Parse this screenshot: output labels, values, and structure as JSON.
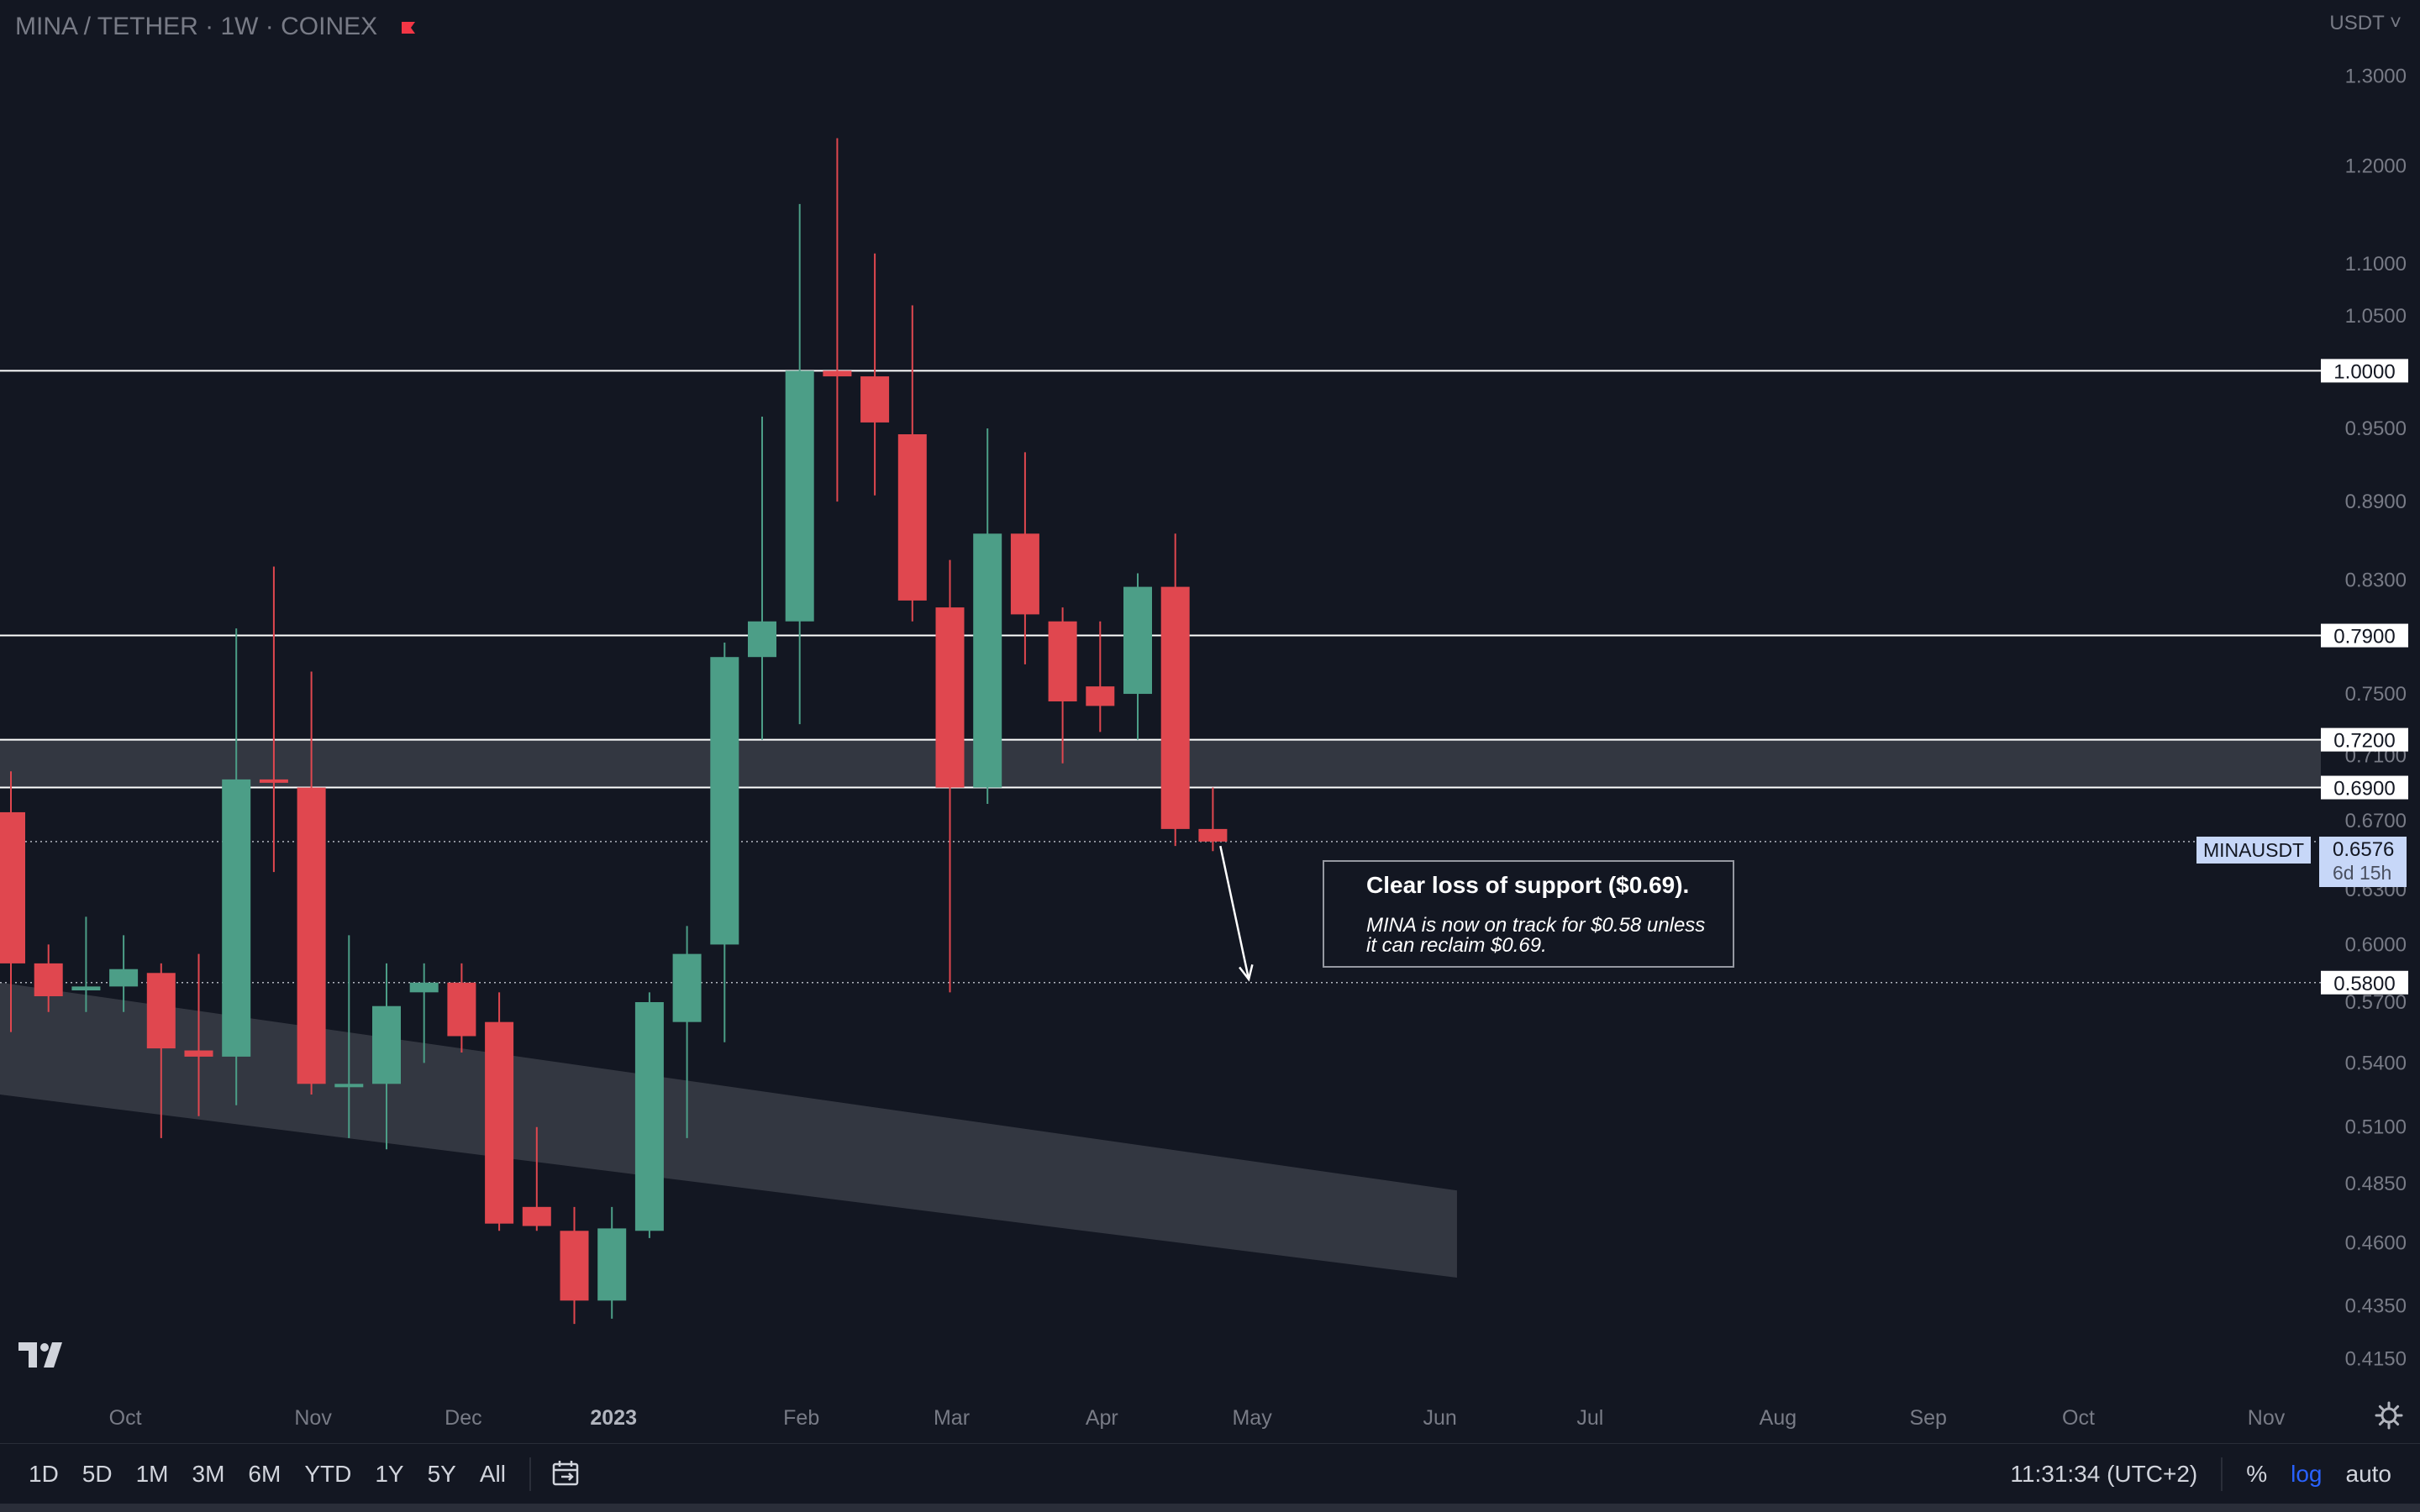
{
  "header": {
    "symbol_title": "MINA / TETHER · 1W · COINEX",
    "currency": "USDT",
    "flag_color": "#f23645"
  },
  "colors": {
    "background": "#131722",
    "up": "#4c9e87",
    "down": "#e0474f",
    "axis_text": "#787b86",
    "line": "#ffffff",
    "zone": "#3a3d46"
  },
  "annotation": {
    "title": "Clear loss of support ($0.69).",
    "body_line1": "MINA is now on track for $0.58 unless",
    "body_line2": "it can reclaim $0.69."
  },
  "symbol_tag": {
    "name": "MINAUSDT",
    "price": "0.6576",
    "countdown": "6d 15h"
  },
  "toolbar": {
    "ranges": [
      "1D",
      "5D",
      "1M",
      "3M",
      "6M",
      "YTD",
      "1Y",
      "5Y",
      "All"
    ],
    "time": "11:31:34 (UTC+2)",
    "percent": "%",
    "log": "log",
    "auto": "auto"
  },
  "chart_data": {
    "type": "candlestick",
    "title": "MINA / TETHER · 1W · COINEX",
    "y_scale": "log",
    "ylim": [
      0.405,
      1.34
    ],
    "y_ticks": [
      {
        "v": 1.3,
        "label": "1.3000"
      },
      {
        "v": 1.2,
        "label": "1.2000"
      },
      {
        "v": 1.1,
        "label": "1.1000"
      },
      {
        "v": 1.05,
        "label": "1.0500"
      },
      {
        "v": 0.95,
        "label": "0.9500"
      },
      {
        "v": 0.89,
        "label": "0.8900"
      },
      {
        "v": 0.83,
        "label": "0.8300"
      },
      {
        "v": 0.75,
        "label": "0.7500"
      },
      {
        "v": 0.71,
        "label": "0.7100"
      },
      {
        "v": 0.67,
        "label": "0.6700"
      },
      {
        "v": 0.63,
        "label": "0.6300"
      },
      {
        "v": 0.6,
        "label": "0.6000"
      },
      {
        "v": 0.57,
        "label": "0.5700"
      },
      {
        "v": 0.54,
        "label": "0.5400"
      },
      {
        "v": 0.51,
        "label": "0.5100"
      },
      {
        "v": 0.485,
        "label": "0.4850"
      },
      {
        "v": 0.46,
        "label": "0.4600"
      },
      {
        "v": 0.435,
        "label": "0.4350"
      },
      {
        "v": 0.415,
        "label": "0.4150"
      }
    ],
    "x_ticks": [
      {
        "i": 3,
        "label": "Oct",
        "bold": false
      },
      {
        "i": 8,
        "label": "Nov",
        "bold": false
      },
      {
        "i": 12,
        "label": "Dec",
        "bold": false
      },
      {
        "i": 16,
        "label": "2023",
        "bold": true
      },
      {
        "i": 21,
        "label": "Feb",
        "bold": false
      },
      {
        "i": 25,
        "label": "Mar",
        "bold": false
      },
      {
        "i": 29,
        "label": "Apr",
        "bold": false
      },
      {
        "i": 33,
        "label": "May",
        "bold": false
      },
      {
        "i": 38,
        "label": "Jun",
        "bold": false
      },
      {
        "i": 42,
        "label": "Jul",
        "bold": false
      },
      {
        "i": 47,
        "label": "Aug",
        "bold": false
      },
      {
        "i": 51,
        "label": "Sep",
        "bold": false
      },
      {
        "i": 55,
        "label": "Oct",
        "bold": false
      },
      {
        "i": 60,
        "label": "Nov",
        "bold": false
      }
    ],
    "candles": [
      {
        "i": 0,
        "o": 0.675,
        "h": 0.7,
        "l": 0.555,
        "c": 0.59
      },
      {
        "i": 1,
        "o": 0.59,
        "h": 0.6,
        "l": 0.565,
        "c": 0.573
      },
      {
        "i": 2,
        "o": 0.576,
        "h": 0.615,
        "l": 0.565,
        "c": 0.578
      },
      {
        "i": 3,
        "o": 0.578,
        "h": 0.605,
        "l": 0.565,
        "c": 0.587
      },
      {
        "i": 4,
        "o": 0.585,
        "h": 0.59,
        "l": 0.505,
        "c": 0.547
      },
      {
        "i": 5,
        "o": 0.546,
        "h": 0.595,
        "l": 0.515,
        "c": 0.543
      },
      {
        "i": 6,
        "o": 0.543,
        "h": 0.795,
        "l": 0.52,
        "c": 0.695
      },
      {
        "i": 7,
        "o": 0.695,
        "h": 0.84,
        "l": 0.64,
        "c": 0.693
      },
      {
        "i": 8,
        "o": 0.69,
        "h": 0.765,
        "l": 0.525,
        "c": 0.53
      },
      {
        "i": 9,
        "o": 0.53,
        "h": 0.605,
        "l": 0.505,
        "c": 0.53
      },
      {
        "i": 10,
        "o": 0.53,
        "h": 0.59,
        "l": 0.5,
        "c": 0.568
      },
      {
        "i": 11,
        "o": 0.575,
        "h": 0.59,
        "l": 0.54,
        "c": 0.58
      },
      {
        "i": 12,
        "o": 0.58,
        "h": 0.59,
        "l": 0.545,
        "c": 0.553
      },
      {
        "i": 13,
        "o": 0.56,
        "h": 0.575,
        "l": 0.465,
        "c": 0.468
      },
      {
        "i": 14,
        "o": 0.475,
        "h": 0.51,
        "l": 0.465,
        "c": 0.467
      },
      {
        "i": 15,
        "o": 0.465,
        "h": 0.475,
        "l": 0.428,
        "c": 0.437
      },
      {
        "i": 16,
        "o": 0.437,
        "h": 0.475,
        "l": 0.43,
        "c": 0.466
      },
      {
        "i": 17,
        "o": 0.465,
        "h": 0.575,
        "l": 0.462,
        "c": 0.57
      },
      {
        "i": 18,
        "o": 0.56,
        "h": 0.61,
        "l": 0.505,
        "c": 0.595
      },
      {
        "i": 19,
        "o": 0.6,
        "h": 0.785,
        "l": 0.55,
        "c": 0.775
      },
      {
        "i": 20,
        "o": 0.775,
        "h": 0.96,
        "l": 0.72,
        "c": 0.8
      },
      {
        "i": 21,
        "o": 0.8,
        "h": 1.16,
        "l": 0.73,
        "c": 1.0
      },
      {
        "i": 22,
        "o": 1.0,
        "h": 1.23,
        "l": 0.89,
        "c": 0.995
      },
      {
        "i": 23,
        "o": 0.995,
        "h": 1.11,
        "l": 0.895,
        "c": 0.955
      },
      {
        "i": 24,
        "o": 0.945,
        "h": 1.06,
        "l": 0.8,
        "c": 0.815
      },
      {
        "i": 25,
        "o": 0.81,
        "h": 0.845,
        "l": 0.575,
        "c": 0.69
      },
      {
        "i": 26,
        "o": 0.69,
        "h": 0.95,
        "l": 0.68,
        "c": 0.865
      },
      {
        "i": 27,
        "o": 0.865,
        "h": 0.93,
        "l": 0.77,
        "c": 0.805
      },
      {
        "i": 28,
        "o": 0.8,
        "h": 0.81,
        "l": 0.705,
        "c": 0.745
      },
      {
        "i": 29,
        "o": 0.755,
        "h": 0.8,
        "l": 0.725,
        "c": 0.742
      },
      {
        "i": 30,
        "o": 0.75,
        "h": 0.835,
        "l": 0.72,
        "c": 0.825
      },
      {
        "i": 31,
        "o": 0.825,
        "h": 0.865,
        "l": 0.655,
        "c": 0.665
      },
      {
        "i": 32,
        "o": 0.665,
        "h": 0.69,
        "l": 0.652,
        "c": 0.6576
      }
    ],
    "horizontal_levels": [
      {
        "v": 1.0,
        "label": "1.0000"
      },
      {
        "v": 0.79,
        "label": "0.7900"
      },
      {
        "v": 0.72,
        "label": "0.7200"
      },
      {
        "v": 0.69,
        "label": "0.6900"
      },
      {
        "v": 0.58,
        "label": "0.5800",
        "style": "dotted"
      }
    ],
    "resistance_zone": {
      "from": 0.69,
      "to": 0.72
    },
    "descending_channel": {
      "start": {
        "i": -1,
        "top": 0.58,
        "bottom": 0.525
      },
      "end": {
        "i": 38.5,
        "top": 0.482,
        "bottom": 0.446
      }
    },
    "projection_arrow": {
      "from": {
        "i": 32.2,
        "v": 0.655
      },
      "to": {
        "i": 33,
        "v": 0.58
      }
    },
    "last_price": 0.6576
  }
}
